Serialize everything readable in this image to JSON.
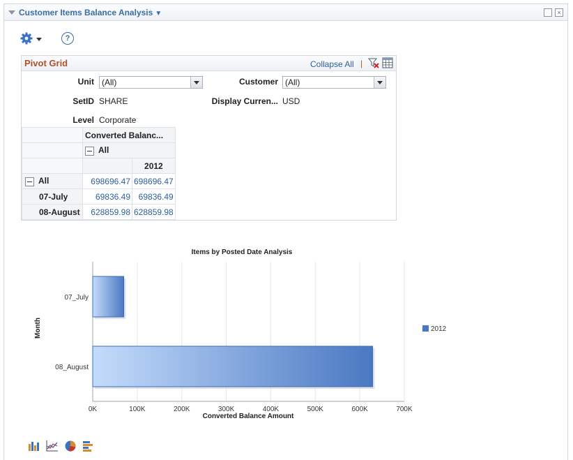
{
  "pagelet": {
    "title": "Customer Items Balance Analysis",
    "title_caret": "▼",
    "maximize_icon": "maximize-icon",
    "close_icon": "close-icon",
    "close_glyph": "×"
  },
  "toolbar": {
    "settings_icon": "gear-icon",
    "help_icon": "help-icon",
    "help_glyph": "?"
  },
  "pivot": {
    "title": "Pivot Grid",
    "collapse_all": "Collapse All",
    "separator": "|",
    "filters": {
      "unit_label": "Unit",
      "unit_value": "(All)",
      "customer_label": "Customer",
      "customer_value": "(All)",
      "setid_label": "SetID",
      "setid_value": "SHARE",
      "currency_label": "Display Curren...",
      "currency_value": "USD",
      "level_label": "Level",
      "level_value": "Corporate"
    },
    "grid": {
      "measure_header": "Converted Balanc...",
      "col_all": "All",
      "col_year": "2012",
      "rows": [
        {
          "label": "All",
          "expand": true,
          "total": "698696.47",
          "year": "698696.47"
        },
        {
          "label": "07-July",
          "expand": false,
          "total": "69836.49",
          "year": "69836.49"
        },
        {
          "label": "08-August",
          "expand": false,
          "total": "628859.98",
          "year": "628859.98"
        }
      ]
    }
  },
  "chart_data": {
    "type": "bar",
    "orientation": "horizontal",
    "title": "Items by Posted Date Analysis",
    "xlabel": "Converted Balance Amount",
    "ylabel": "Month",
    "categories": [
      "07_July",
      "08_August"
    ],
    "series": [
      {
        "name": "2012",
        "values": [
          69836.49,
          628859.98
        ],
        "color": "#4a78c2"
      }
    ],
    "xlim": [
      0,
      700000
    ],
    "xticks": [
      0,
      100000,
      200000,
      300000,
      400000,
      500000,
      600000,
      700000
    ],
    "xtick_labels": [
      "0K",
      "100K",
      "200K",
      "300K",
      "400K",
      "500K",
      "600K",
      "700K"
    ],
    "grid": true,
    "legend": "right"
  },
  "chart_toolbar": {
    "icons": [
      "bar-chart-icon",
      "line-chart-icon",
      "pie-chart-icon",
      "horizontal-bar-chart-icon"
    ]
  }
}
